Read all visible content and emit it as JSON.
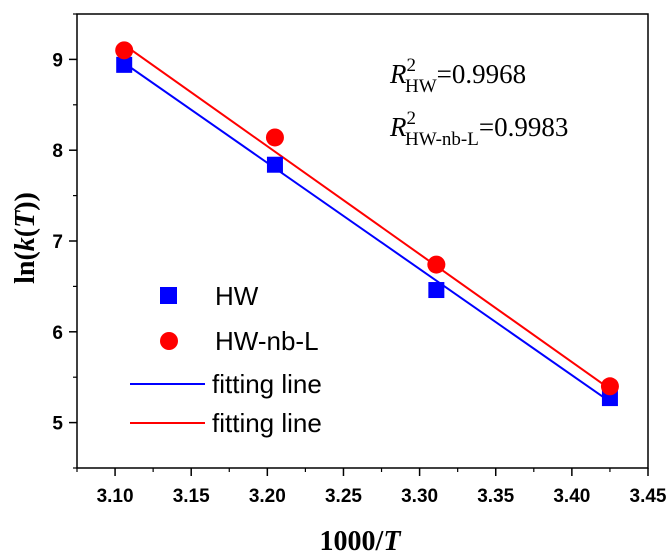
{
  "chart_data": {
    "type": "scatter",
    "xlabel": {
      "prefix": "1000/",
      "var": "T"
    },
    "ylabel": {
      "prefix": "ln(",
      "var1": "k",
      "mid": "(",
      "var2": "T",
      "suffix": "))"
    },
    "xlim": [
      3.075,
      3.45
    ],
    "ylim": [
      4.5,
      9.5
    ],
    "x_ticks": [
      "3.10",
      "3.15",
      "3.20",
      "3.25",
      "3.30",
      "3.35",
      "3.40",
      "3.45"
    ],
    "x_tick_values": [
      3.1,
      3.15,
      3.2,
      3.25,
      3.3,
      3.35,
      3.4,
      3.45
    ],
    "y_ticks": [
      "5",
      "6",
      "7",
      "8",
      "9"
    ],
    "y_tick_values": [
      5,
      6,
      7,
      8,
      9
    ],
    "series": [
      {
        "name": "HW",
        "marker": "square",
        "color": "#0000ff",
        "x": [
          3.106,
          3.205,
          3.311,
          3.425
        ],
        "y": [
          8.94,
          7.84,
          6.46,
          5.27
        ]
      },
      {
        "name": "HW-nb-L",
        "marker": "circle",
        "color": "#ff0000",
        "x": [
          3.106,
          3.205,
          3.311,
          3.425
        ],
        "y": [
          9.1,
          8.14,
          6.74,
          5.4
        ]
      }
    ],
    "fits": [
      {
        "name": "fitting line",
        "color": "#0000ff",
        "x": [
          3.106,
          3.425
        ],
        "y": [
          8.96,
          5.23
        ]
      },
      {
        "name": "fitting line",
        "color": "#ff0000",
        "x": [
          3.106,
          3.425
        ],
        "y": [
          9.16,
          5.37
        ]
      }
    ],
    "annotations": [
      {
        "var": "R",
        "sup": "2",
        "sub": "HW",
        "value": "=0.9968"
      },
      {
        "var": "R",
        "sup": "2",
        "sub": "HW-nb-L",
        "value": "=0.9983"
      }
    ],
    "legend_position": "lower-left",
    "grid": false
  }
}
